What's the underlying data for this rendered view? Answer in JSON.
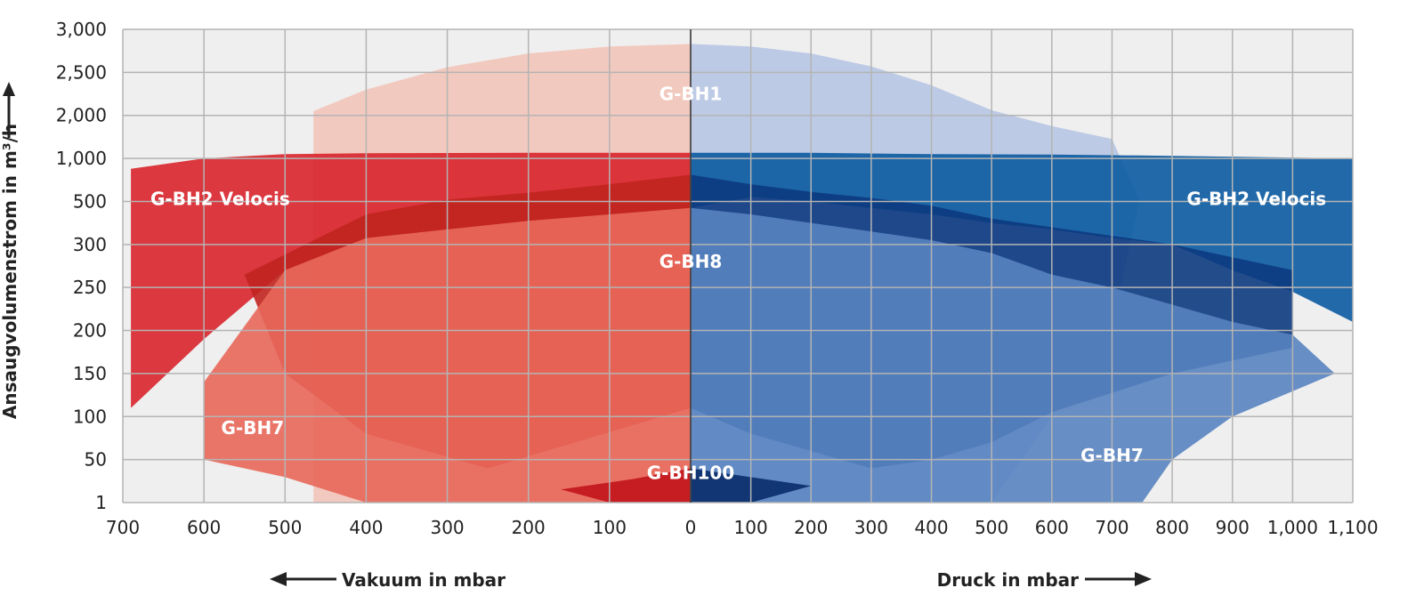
{
  "chart_data": {
    "type": "area",
    "y_axis": {
      "label": "Ansaugvolumenstrom in m³/h",
      "ticks": [
        "1",
        "50",
        "100",
        "150",
        "200",
        "250",
        "300",
        "500",
        "1,000",
        "2,000",
        "2,500",
        "3,000"
      ]
    },
    "x_axis_vacuum": {
      "label": "Vakuum in mbar",
      "ticks": [
        "700",
        "600",
        "500",
        "400",
        "300",
        "200",
        "100",
        "0"
      ]
    },
    "x_axis_pressure": {
      "label": "Druck in mbar",
      "ticks": [
        "100",
        "200",
        "300",
        "400",
        "500",
        "600",
        "700",
        "800",
        "900",
        "1,000",
        "1,100"
      ]
    },
    "grid": true,
    "series": [
      {
        "name": "G-BH1",
        "vacuum": {
          "color": "#f2c4b8",
          "points": [
            [
              0,
              2830
            ],
            [
              100,
              2800
            ],
            [
              200,
              2720
            ],
            [
              300,
              2560
            ],
            [
              400,
              2300
            ],
            [
              465,
              2050
            ],
            [
              465,
              1
            ],
            [
              300,
              1
            ],
            [
              0,
              1
            ]
          ]
        },
        "pressure": {
          "color": "#b7c5e3",
          "points": [
            [
              0,
              2830
            ],
            [
              100,
              2800
            ],
            [
              200,
              2720
            ],
            [
              300,
              2570
            ],
            [
              400,
              2350
            ],
            [
              500,
              2060
            ],
            [
              600,
              1750
            ],
            [
              700,
              1450
            ],
            [
              745,
              520
            ],
            [
              700,
              200
            ],
            [
              600,
              100
            ],
            [
              500,
              1
            ],
            [
              0,
              1
            ]
          ]
        }
      },
      {
        "name": "G-BH2 Velocis",
        "vacuum": {
          "color": "#d8232b",
          "points": [
            [
              0,
              1130
            ],
            [
              200,
              1130
            ],
            [
              400,
              1120
            ],
            [
              500,
              1100
            ],
            [
              600,
              1000
            ],
            [
              690,
              880
            ],
            [
              690,
              110
            ],
            [
              600,
              190
            ],
            [
              500,
              270
            ],
            [
              400,
              330
            ],
            [
              300,
              370
            ],
            [
              200,
              410
            ],
            [
              100,
              440
            ],
            [
              0,
              470
            ]
          ]
        },
        "pressure": {
          "color": "#0a5aa0",
          "points": [
            [
              0,
              1130
            ],
            [
              200,
              1130
            ],
            [
              400,
              1100
            ],
            [
              600,
              1090
            ],
            [
              800,
              1060
            ],
            [
              1100,
              1000
            ],
            [
              1100,
              210
            ],
            [
              1000,
              245
            ],
            [
              900,
              270
            ],
            [
              800,
              300
            ],
            [
              700,
              330
            ],
            [
              600,
              370
            ],
            [
              500,
              400
            ],
            [
              400,
              440
            ],
            [
              300,
              470
            ],
            [
              200,
              500
            ],
            [
              100,
              550
            ],
            [
              0,
              470
            ]
          ]
        }
      },
      {
        "name": "G-BH8",
        "vacuum": {
          "color": "#c0241f",
          "points": [
            [
              0,
              810
            ],
            [
              100,
              700
            ],
            [
              200,
              600
            ],
            [
              300,
              520
            ],
            [
              400,
              440
            ],
            [
              550,
              265
            ],
            [
              500,
              150
            ],
            [
              400,
              80
            ],
            [
              250,
              40
            ],
            [
              0,
              110
            ]
          ]
        },
        "pressure": {
          "color": "#0c3a80",
          "points": [
            [
              0,
              810
            ],
            [
              100,
              700
            ],
            [
              200,
              610
            ],
            [
              300,
              540
            ],
            [
              400,
              480
            ],
            [
              500,
              420
            ],
            [
              600,
              380
            ],
            [
              700,
              340
            ],
            [
              800,
              300
            ],
            [
              900,
              285
            ],
            [
              1000,
              270
            ],
            [
              1000,
              180
            ],
            [
              800,
              150
            ],
            [
              600,
              105
            ],
            [
              500,
              70
            ],
            [
              400,
              50
            ],
            [
              300,
              40
            ],
            [
              200,
              60
            ],
            [
              100,
              80
            ],
            [
              0,
              110
            ]
          ]
        }
      },
      {
        "name": "G-BH7",
        "vacuum": {
          "color": "#e8675a",
          "points": [
            [
              0,
              470
            ],
            [
              100,
              440
            ],
            [
              200,
              410
            ],
            [
              300,
              370
            ],
            [
              400,
              330
            ],
            [
              500,
              270
            ],
            [
              600,
              140
            ],
            [
              600,
              50
            ],
            [
              500,
              30
            ],
            [
              400,
              1
            ],
            [
              0,
              1
            ]
          ]
        },
        "pressure": {
          "color": "#5883c0",
          "points": [
            [
              0,
              470
            ],
            [
              100,
              440
            ],
            [
              200,
              400
            ],
            [
              300,
              360
            ],
            [
              400,
              320
            ],
            [
              500,
              290
            ],
            [
              600,
              265
            ],
            [
              700,
              250
            ],
            [
              800,
              230
            ],
            [
              900,
              210
            ],
            [
              1000,
              195
            ],
            [
              1070,
              150
            ],
            [
              900,
              100
            ],
            [
              800,
              50
            ],
            [
              750,
              1
            ],
            [
              0,
              1
            ]
          ]
        }
      },
      {
        "name": "G-BH100",
        "vacuum": {
          "color": "#c1141b",
          "points": [
            [
              0,
              40
            ],
            [
              70,
              28
            ],
            [
              160,
              16
            ],
            [
              100,
              1
            ],
            [
              0,
              1
            ]
          ]
        },
        "pressure": {
          "color": "#0a2c6a",
          "points": [
            [
              0,
              40
            ],
            [
              100,
              30
            ],
            [
              200,
              20
            ],
            [
              100,
              1
            ],
            [
              0,
              1
            ]
          ]
        }
      }
    ],
    "labels": [
      {
        "text": "G-BH1",
        "x": 0,
        "y": 2250
      },
      {
        "text": "G-BH2 Velocis",
        "x": 580,
        "y": 530
      },
      {
        "text": "G-BH2 Velocis",
        "x": 940,
        "y": 530
      },
      {
        "text": "G-BH8",
        "x": 0,
        "y": 280
      },
      {
        "text": "G-BH7",
        "x": 540,
        "y": 87
      },
      {
        "text": "G-BH7",
        "x": 700,
        "y": 55
      },
      {
        "text": "G-BH100",
        "x": 0,
        "y": 35
      }
    ]
  }
}
